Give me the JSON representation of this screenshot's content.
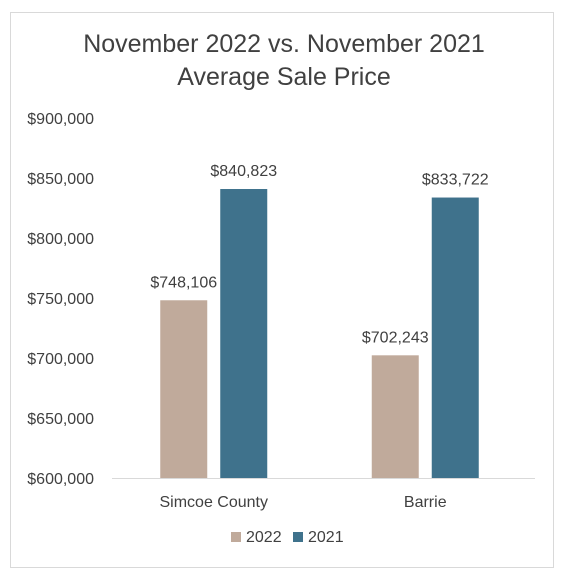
{
  "chart_data": {
    "type": "bar",
    "title_lines": [
      "November 2022 vs. November 2021",
      "Average Sale Price"
    ],
    "categories": [
      "Simcoe County",
      "Barrie"
    ],
    "series": [
      {
        "name": "2022",
        "values": [
          748106,
          702243
        ],
        "labels": [
          "$748,106",
          "$702,243"
        ],
        "color": "#c0aa9b"
      },
      {
        "name": "2021",
        "values": [
          840823,
          833722
        ],
        "labels": [
          "$840,823",
          "$833,722"
        ],
        "color": "#3f728c"
      }
    ],
    "ylim": [
      600000,
      900000
    ],
    "yticks": [
      900000,
      850000,
      800000,
      750000,
      700000,
      650000,
      600000
    ],
    "ytick_labels": [
      "$900,000",
      "$850,000",
      "$800,000",
      "$750,000",
      "$700,000",
      "$650,000",
      "$600,000"
    ],
    "grid": false,
    "legend_position": "bottom"
  }
}
